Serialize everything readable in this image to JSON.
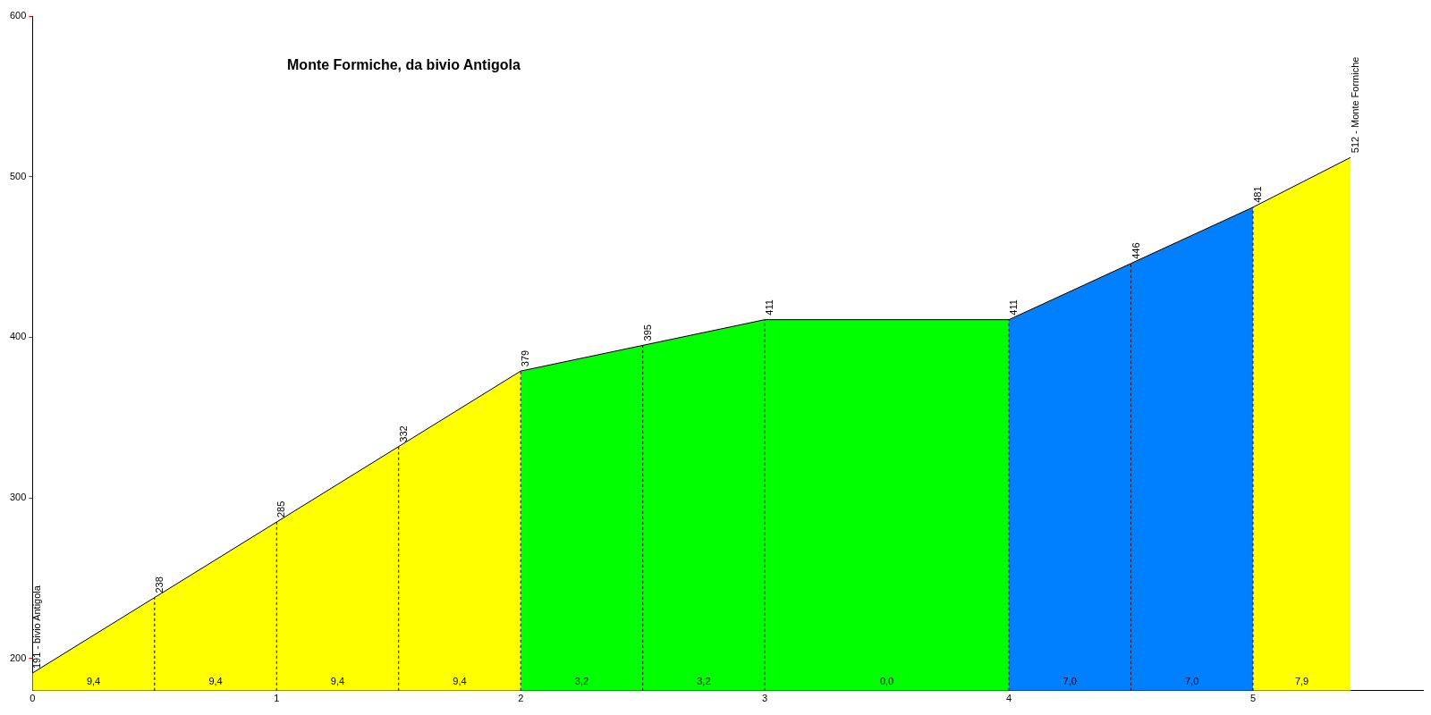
{
  "chart_data": {
    "type": "area",
    "title": "Monte Formiche, da bivio Antigola",
    "series": [
      {
        "color": "#ffff00",
        "x": [
          0,
          0.5,
          1,
          1.5,
          2
        ],
        "values": [
          191,
          238,
          285,
          332,
          379
        ],
        "value_labels": [
          "191 - bivio Antigola",
          "238",
          "285",
          "332",
          null
        ]
      },
      {
        "color": "#00ff00",
        "x": [
          2,
          2.5,
          3,
          4
        ],
        "values": [
          379,
          395,
          411,
          411
        ],
        "value_labels": [
          "379",
          "395",
          "411",
          "411"
        ]
      },
      {
        "color": "#0080ff",
        "x": [
          4,
          4.5,
          5
        ],
        "values": [
          411,
          446,
          481
        ],
        "value_labels": [
          null,
          "446",
          "481"
        ]
      },
      {
        "color": "#ffff00",
        "x": [
          5,
          5.4
        ],
        "values": [
          481,
          512
        ],
        "value_labels": [
          null,
          "512 - Monte Formiche"
        ]
      }
    ],
    "xlim": [
      0,
      5.7
    ],
    "xticks": [
      0,
      1,
      2,
      3,
      4,
      5
    ],
    "ylim": [
      180,
      600
    ],
    "yticks": [
      200,
      300,
      400,
      500,
      600
    ],
    "grid": false,
    "legend": false,
    "ref_lines": [
      {
        "axis": "x",
        "value": 0.5,
        "line_style": "dashed"
      },
      {
        "axis": "x",
        "value": 1,
        "line_style": "dashed"
      },
      {
        "axis": "x",
        "value": 1.5,
        "line_style": "dashed"
      },
      {
        "axis": "x",
        "value": 2,
        "line_style": "dashed"
      },
      {
        "axis": "x",
        "value": 2.5,
        "line_style": "dashed"
      },
      {
        "axis": "x",
        "value": 3,
        "line_style": "dashed"
      },
      {
        "axis": "x",
        "value": 4,
        "line_style": "dashed"
      },
      {
        "axis": "x",
        "value": 4.5,
        "line_style": "dashed"
      },
      {
        "axis": "x",
        "value": 5,
        "line_style": "dashed"
      }
    ],
    "annotations": [
      "9,4",
      "9,4",
      "9,4",
      "9,4",
      "3,2",
      "3,2",
      "0,0",
      "7,0",
      "7,0",
      "7,9"
    ]
  }
}
